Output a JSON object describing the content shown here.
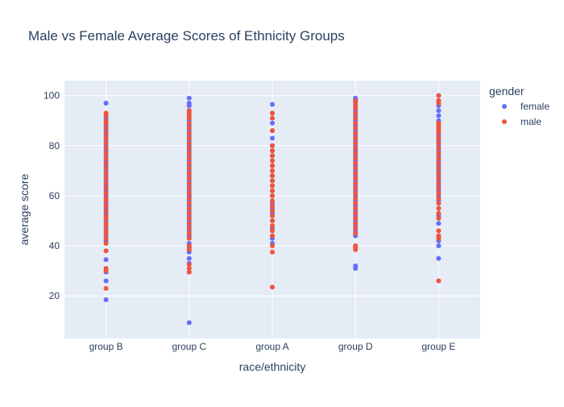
{
  "chart_data": {
    "type": "scatter",
    "title": "Male vs Female Average Scores of Ethnicity Groups",
    "xlabel": "race/ethnicity",
    "ylabel": "average score",
    "categories": [
      "group B",
      "group C",
      "group A",
      "group D",
      "group E"
    ],
    "ylim": [
      3,
      106
    ],
    "yticks": [
      20,
      40,
      60,
      80,
      100
    ],
    "grid": true,
    "legend": {
      "title": "gender",
      "placement": "top-right"
    },
    "series": [
      {
        "name": "female",
        "color": "#636efa",
        "points": {
          "group B": [
            18.5,
            26,
            29.5,
            34.5,
            42,
            44,
            47,
            50,
            53,
            55,
            57,
            58,
            60,
            62,
            64,
            66,
            68,
            70,
            72,
            74,
            76,
            78,
            80,
            82,
            84,
            86,
            88,
            89,
            91,
            92.5,
            97
          ],
          "group C": [
            9.3,
            29.5,
            33,
            35,
            37.5,
            39.5,
            41,
            44,
            46,
            48,
            50,
            52,
            54,
            56,
            58,
            60,
            62,
            64,
            66,
            68,
            70,
            72,
            74,
            76,
            78,
            80,
            82,
            84,
            86,
            88,
            90,
            92,
            94,
            96,
            97,
            99
          ],
          "group A": [
            41,
            43,
            47,
            50,
            53,
            55,
            57,
            60,
            62,
            64,
            66,
            68,
            70,
            72,
            74,
            76,
            78,
            80,
            83,
            86,
            89,
            93,
            96.5
          ],
          "group D": [
            31,
            32,
            40,
            44,
            46,
            48,
            50,
            52,
            54,
            56,
            58,
            60,
            62,
            64,
            66,
            68,
            70,
            72,
            74,
            76,
            78,
            80,
            82,
            84,
            86,
            88,
            90,
            92,
            94,
            96,
            97.5,
            98.5,
            99
          ],
          "group E": [
            35,
            40,
            42,
            44,
            49,
            52,
            55,
            58,
            60,
            62,
            64,
            66,
            68,
            70,
            72,
            74,
            76,
            78,
            80,
            82,
            84,
            86,
            88,
            90,
            92,
            94,
            96,
            98,
            100
          ]
        }
      },
      {
        "name": "male",
        "color": "#ef553b",
        "points": {
          "group B": [
            23,
            30,
            31,
            38,
            41,
            43,
            45,
            46,
            48,
            49,
            51,
            52,
            54,
            56,
            58,
            59,
            61,
            63,
            65,
            67,
            69,
            71,
            73,
            75,
            77,
            79,
            81,
            83,
            85,
            87,
            89,
            90,
            92,
            93
          ],
          "group C": [
            29.5,
            31,
            32.5,
            38.5,
            40,
            43,
            45,
            47,
            49,
            51,
            53,
            55,
            57,
            59,
            61,
            63,
            65,
            67,
            69,
            71,
            73,
            75,
            77,
            79,
            81,
            83,
            85,
            87,
            89,
            91,
            92,
            93,
            94
          ],
          "group A": [
            23.5,
            37.5,
            40,
            44,
            46,
            48,
            50,
            52,
            54,
            56,
            58,
            60,
            62,
            64,
            66,
            68,
            70,
            72,
            74,
            76,
            78,
            80,
            86,
            91,
            93
          ],
          "group D": [
            38.5,
            39.5,
            40,
            45,
            47,
            49,
            51,
            53,
            55,
            57,
            59,
            61,
            63,
            65,
            67,
            69,
            71,
            73,
            75,
            77,
            79,
            81,
            83,
            85,
            87,
            89,
            91,
            93,
            95,
            96.5,
            98
          ],
          "group E": [
            26,
            43,
            44,
            46,
            51,
            53,
            55,
            57,
            59,
            61,
            63,
            65,
            67,
            69,
            71,
            73,
            75,
            77,
            79,
            81,
            83,
            85,
            86,
            87,
            88,
            89,
            97,
            98,
            100
          ]
        }
      }
    ]
  }
}
